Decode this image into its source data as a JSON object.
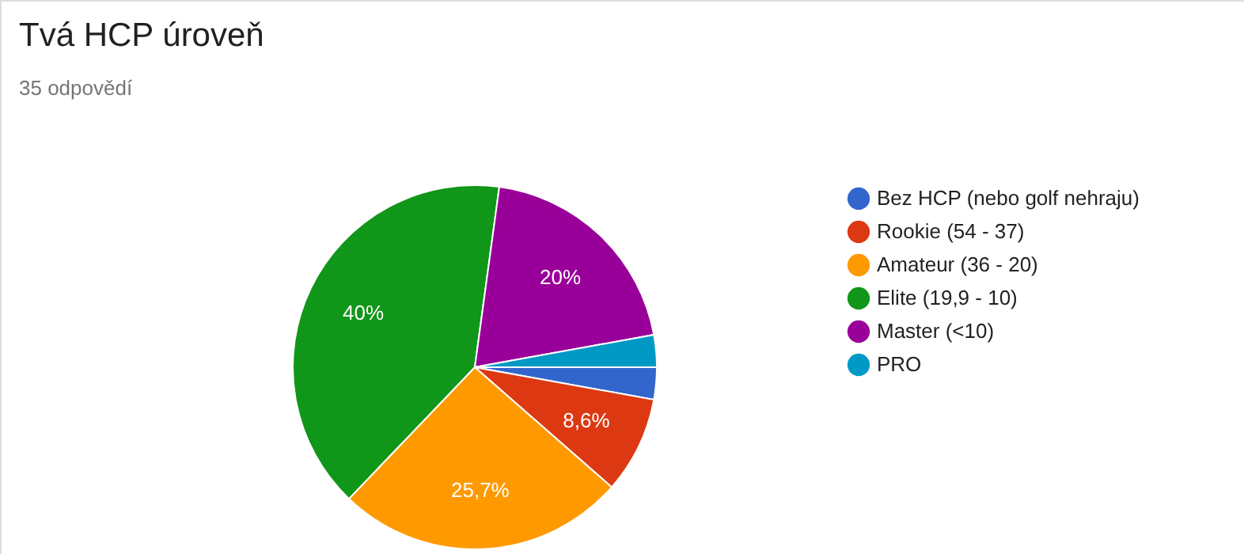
{
  "chart_data": {
    "type": "pie",
    "title": "Tvá HCP úroveň",
    "subtitle": "35 odpovědí",
    "categories": [
      "Bez HCP (nebo golf nehraju)",
      "Rookie (54 - 37)",
      "Amateur (36 - 20)",
      "Elite (19,9 - 10)",
      "Master (<10)",
      "PRO"
    ],
    "values": [
      2.85,
      8.6,
      25.7,
      40,
      20,
      2.85
    ],
    "value_labels": [
      null,
      "8,6%",
      "25,7%",
      "40%",
      "20%",
      null
    ],
    "colors": [
      "#3366cc",
      "#dc3912",
      "#ff9900",
      "#109618",
      "#990099",
      "#0099c6"
    ],
    "legend": "right"
  }
}
